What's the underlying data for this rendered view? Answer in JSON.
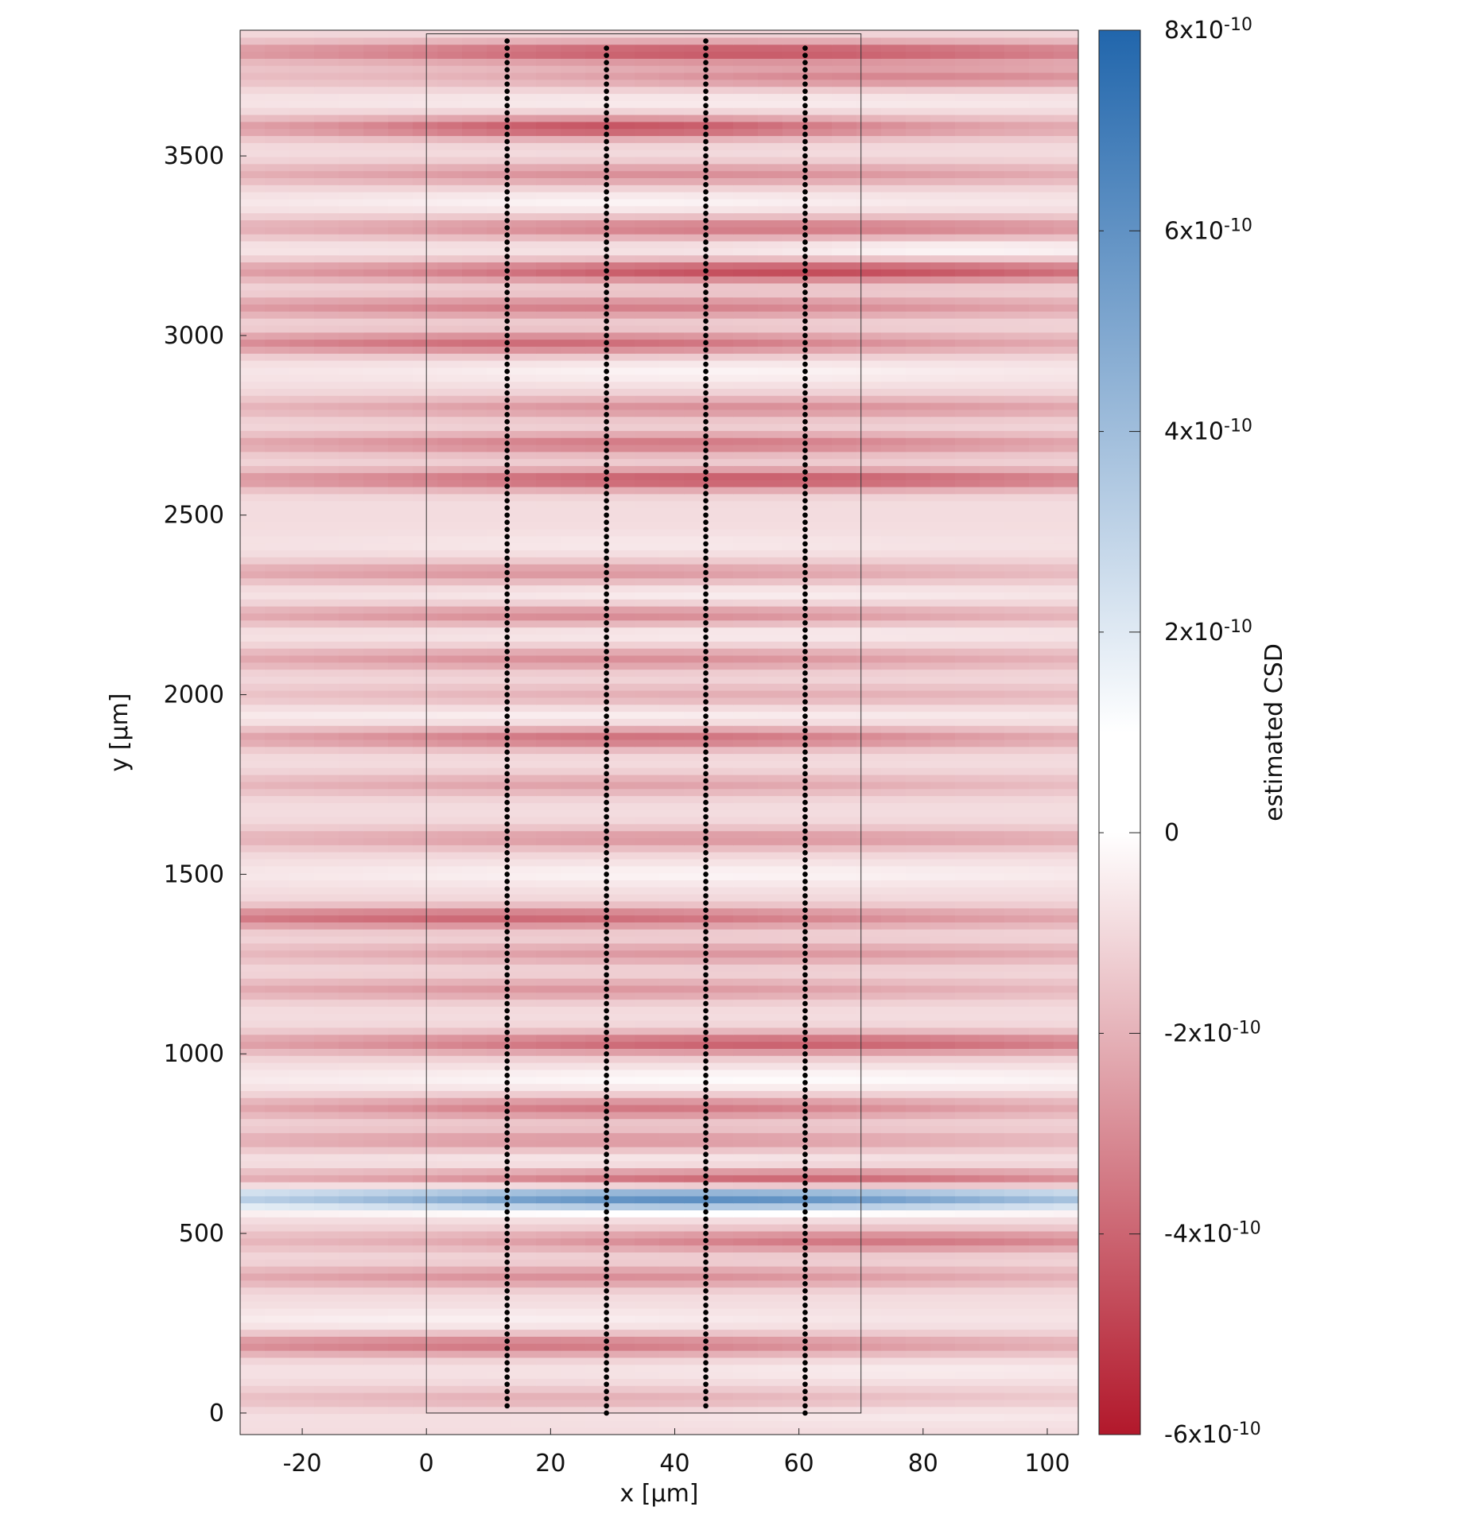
{
  "chart_data": {
    "type": "heatmap",
    "title": "",
    "xlabel": "x [μm]",
    "ylabel": "y [μm]",
    "xlim": [
      -30,
      105
    ],
    "ylim": [
      -60,
      3850
    ],
    "xticks": [
      -20,
      0,
      20,
      40,
      60,
      80,
      100
    ],
    "xtick_labels": [
      "-20",
      "0",
      "20",
      "40",
      "60",
      "80",
      "100"
    ],
    "yticks": [
      0,
      500,
      1000,
      1500,
      2000,
      2500,
      3000,
      3500
    ],
    "ytick_labels": [
      "0",
      "500",
      "1000",
      "1500",
      "2000",
      "2500",
      "3000",
      "3500"
    ],
    "colorbar": {
      "label": "estimated CSD",
      "range": [
        -6e-10,
        8e-10
      ],
      "ticks": [
        {
          "value": 8e-10,
          "mantissa": "8x10",
          "exponent": "-10"
        },
        {
          "value": 6e-10,
          "mantissa": "6x10",
          "exponent": "-10"
        },
        {
          "value": 4e-10,
          "mantissa": "4x10",
          "exponent": "-10"
        },
        {
          "value": 2e-10,
          "mantissa": "2x10",
          "exponent": "-10"
        },
        {
          "value": 0,
          "mantissa": "0",
          "exponent": ""
        },
        {
          "value": -2e-10,
          "mantissa": "-2x10",
          "exponent": "-10"
        },
        {
          "value": -4e-10,
          "mantissa": "-4x10",
          "exponent": "-10"
        },
        {
          "value": -6e-10,
          "mantissa": "-6x10",
          "exponent": "-10"
        }
      ],
      "colors": {
        "negative": "#b2182b",
        "zero": "#ffffff",
        "positive": "#2166ac"
      }
    },
    "probe_outline": {
      "x": [
        0,
        70
      ],
      "y": [
        0,
        3840
      ]
    },
    "electrode_columns": [
      {
        "x": 13,
        "y_start": 20,
        "y_end": 3820,
        "y_step": 20
      },
      {
        "x": 29,
        "y_start": 0,
        "y_end": 3800,
        "y_step": 20
      },
      {
        "x": 45,
        "y_start": 20,
        "y_end": 3820,
        "y_step": 20
      },
      {
        "x": 61,
        "y_start": 0,
        "y_end": 3800,
        "y_step": 20
      }
    ],
    "csd_bands": [
      {
        "y": 3790,
        "value": -3.5e-10,
        "x_center": 50,
        "width": 22
      },
      {
        "y": 3720,
        "value": -2.2e-10,
        "x_center": 75,
        "width": 18
      },
      {
        "y": 3650,
        "value": 4e-11,
        "x_center": 45,
        "width": 20
      },
      {
        "y": 3580,
        "value": -3.6e-10,
        "x_center": 30,
        "width": 14
      },
      {
        "y": 3450,
        "value": -2e-10,
        "x_center": 40,
        "width": 22
      },
      {
        "y": 3370,
        "value": 6e-11,
        "x_center": 30,
        "width": 14
      },
      {
        "y": 3300,
        "value": -2.6e-10,
        "x_center": 55,
        "width": 20
      },
      {
        "y": 3240,
        "value": 8e-11,
        "x_center": 85,
        "width": 10
      },
      {
        "y": 3180,
        "value": -3.8e-10,
        "x_center": 60,
        "width": 20
      },
      {
        "y": 3080,
        "value": -2.4e-10,
        "x_center": 30,
        "width": 24
      },
      {
        "y": 2980,
        "value": -2.9e-10,
        "x_center": 20,
        "width": 20
      },
      {
        "y": 2900,
        "value": 6e-11,
        "x_center": 45,
        "width": 14
      },
      {
        "y": 2800,
        "value": -2e-10,
        "x_center": 50,
        "width": 22
      },
      {
        "y": 2700,
        "value": -2.6e-10,
        "x_center": 40,
        "width": 20
      },
      {
        "y": 2600,
        "value": -3.4e-10,
        "x_center": 50,
        "width": 22
      },
      {
        "y": 2420,
        "value": 3e-11,
        "x_center": 35,
        "width": 14
      },
      {
        "y": 2340,
        "value": -1.8e-10,
        "x_center": 20,
        "width": 22
      },
      {
        "y": 2280,
        "value": 5e-11,
        "x_center": 50,
        "width": 14
      },
      {
        "y": 2220,
        "value": -2.2e-10,
        "x_center": 30,
        "width": 20
      },
      {
        "y": 2180,
        "value": 6e-11,
        "x_center": 50,
        "width": 16
      },
      {
        "y": 2100,
        "value": -2e-10,
        "x_center": 30,
        "width": 22
      },
      {
        "y": 2000,
        "value": -1.2e-10,
        "x_center": 50,
        "width": 24
      },
      {
        "y": 1940,
        "value": 5e-11,
        "x_center": 25,
        "width": 24
      },
      {
        "y": 1880,
        "value": -2.8e-10,
        "x_center": 35,
        "width": 18
      },
      {
        "y": 1750,
        "value": -1.5e-10,
        "x_center": 30,
        "width": 22
      },
      {
        "y": 1600,
        "value": -1.8e-10,
        "x_center": 45,
        "width": 24
      },
      {
        "y": 1500,
        "value": 6e-11,
        "x_center": 45,
        "width": 18
      },
      {
        "y": 1380,
        "value": -3e-10,
        "x_center": 10,
        "width": 24
      },
      {
        "y": 1280,
        "value": -1.8e-10,
        "x_center": 50,
        "width": 22
      },
      {
        "y": 1180,
        "value": -1.8e-10,
        "x_center": 25,
        "width": 22
      },
      {
        "y": 1030,
        "value": -3.2e-10,
        "x_center": 55,
        "width": 22
      },
      {
        "y": 930,
        "value": 8e-11,
        "x_center": 55,
        "width": 20
      },
      {
        "y": 850,
        "value": -2.6e-10,
        "x_center": 35,
        "width": 18
      },
      {
        "y": 760,
        "value": -1.8e-10,
        "x_center": 30,
        "width": 22
      },
      {
        "y": 700,
        "value": 5e-11,
        "x_center": 35,
        "width": 14
      },
      {
        "y": 650,
        "value": -3.4e-10,
        "x_center": 55,
        "width": 18
      },
      {
        "y": 600,
        "value": 7e-10,
        "x_center": 45,
        "width": 20
      },
      {
        "y": 480,
        "value": -2.6e-10,
        "x_center": 70,
        "width": 18
      },
      {
        "y": 380,
        "value": -2e-10,
        "x_center": 30,
        "width": 22
      },
      {
        "y": 260,
        "value": 5e-11,
        "x_center": 5,
        "width": 16
      },
      {
        "y": 190,
        "value": -2.6e-10,
        "x_center": 15,
        "width": 22
      },
      {
        "y": 120,
        "value": 4e-11,
        "x_center": 80,
        "width": 12
      },
      {
        "y": 40,
        "value": -1.2e-10,
        "x_center": 25,
        "width": 20
      },
      {
        "y": 0,
        "value": 4e-11,
        "x_center": 80,
        "width": 14
      }
    ]
  }
}
